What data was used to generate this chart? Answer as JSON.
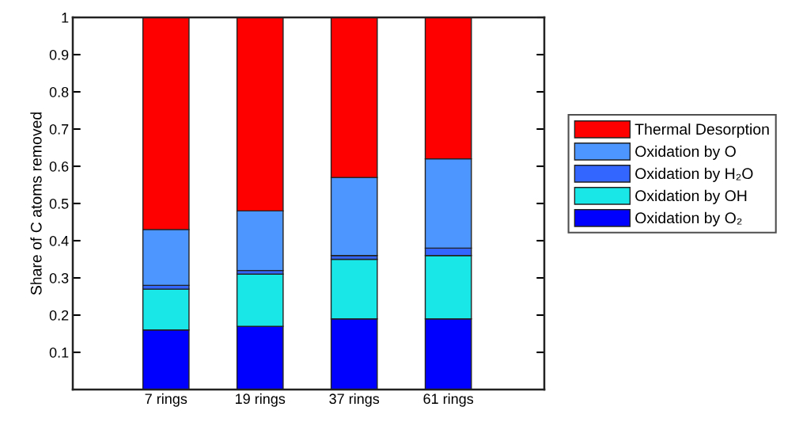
{
  "chart_data": {
    "type": "bar",
    "stacked": true,
    "ylabel": "Share of C atoms removed",
    "categories": [
      "7 rings",
      "19 rings",
      "37 rings",
      "61 rings"
    ],
    "series": [
      {
        "name": "Oxidation by O₂",
        "color": "#0000ff",
        "values": [
          0.16,
          0.17,
          0.19,
          0.19
        ]
      },
      {
        "name": "Oxidation by OH",
        "color": "#19e6e6",
        "values": [
          0.11,
          0.14,
          0.16,
          0.17
        ]
      },
      {
        "name": "Oxidation by H₂O",
        "color": "#3366ff",
        "values": [
          0.01,
          0.01,
          0.01,
          0.02
        ]
      },
      {
        "name": "Oxidation by O",
        "color": "#4d96ff",
        "values": [
          0.15,
          0.16,
          0.21,
          0.24
        ]
      },
      {
        "name": "Thermal Desorption",
        "color": "#ff0000",
        "values": [
          0.57,
          0.52,
          0.43,
          0.38
        ]
      }
    ],
    "ylim": [
      0,
      1
    ],
    "yticks": [
      0.1,
      0.2,
      0.3,
      0.4,
      0.5,
      0.6,
      0.7,
      0.8,
      0.9,
      1
    ],
    "grid": false,
    "legend": "right"
  }
}
